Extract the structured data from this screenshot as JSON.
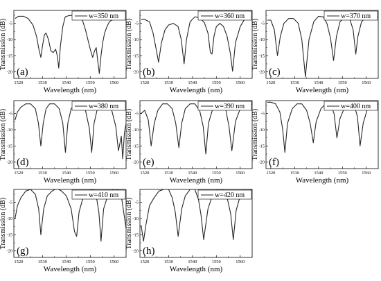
{
  "chart_data": [
    {
      "type": "line",
      "panel_label": "(a)",
      "legend_label": "w=350 nm",
      "xlabel": "Wavelength (nm)",
      "ylabel": "Transmission (dB)",
      "xlim": [
        1518,
        1565
      ],
      "ylim": [
        -22,
        -1
      ],
      "xticks": [
        1520,
        1530,
        1540,
        1550,
        1560
      ],
      "yticks": [
        0,
        -5,
        -10,
        -15,
        -20
      ],
      "x": [
        1518.5,
        1520,
        1522,
        1524,
        1526,
        1527.5,
        1528.5,
        1529.3,
        1530,
        1530.8,
        1531.5,
        1532.5,
        1533.5,
        1534.5,
        1535.5,
        1536.2,
        1536.8,
        1537.5,
        1538.5,
        1539.5,
        1541,
        1543,
        1545,
        1546.5,
        1548,
        1549,
        1550,
        1551,
        1551.8,
        1552.5,
        1553.2,
        1553.8,
        1554.5,
        1555.2,
        1556,
        1557,
        1558,
        1560,
        1562,
        1564,
        1565
      ],
      "y": [
        -3.5,
        -2.8,
        -2.8,
        -3.5,
        -5.5,
        -9,
        -13,
        -15.5,
        -12,
        -8.5,
        -8,
        -10,
        -13.5,
        -14,
        -13,
        -15,
        -18.8,
        -12,
        -6,
        -3,
        -2.6,
        -2.5,
        -2.6,
        -3.5,
        -7,
        -10,
        -13,
        -15.5,
        -13.5,
        -12.5,
        -17,
        -20.5,
        -15,
        -11,
        -8,
        -6,
        -4.5,
        -3.5,
        -3.5,
        -3.5,
        -3.8
      ]
    },
    {
      "type": "line",
      "panel_label": "(b)",
      "legend_label": "w=360 nm",
      "xlabel": "Wavelength (nm)",
      "ylabel": "Transmission (dB)",
      "xlim": [
        1518,
        1565
      ],
      "ylim": [
        -22,
        -1
      ],
      "xticks": [
        1520,
        1530,
        1540,
        1550,
        1560
      ],
      "yticks": [
        0,
        -5,
        -10,
        -15,
        -20
      ],
      "x": [
        1518.5,
        1520,
        1522,
        1523.5,
        1524.8,
        1525.8,
        1527,
        1528.5,
        1530,
        1532,
        1534,
        1535.3,
        1536.5,
        1537.5,
        1539,
        1541,
        1543,
        1545,
        1546.5,
        1547.5,
        1548.2,
        1549,
        1550,
        1551.5,
        1553,
        1554.5,
        1555.8,
        1556.8,
        1558,
        1560,
        1562,
        1564,
        1565
      ],
      "y": [
        -3.8,
        -3.8,
        -4.5,
        -8,
        -13,
        -17,
        -11,
        -7,
        -5.5,
        -5,
        -6,
        -10,
        -17.5,
        -10,
        -4.5,
        -3,
        -3.2,
        -4.8,
        -8,
        -14,
        -14.5,
        -9,
        -6,
        -5,
        -6,
        -9,
        -14,
        -19.8,
        -11,
        -6,
        -3.5,
        -3.2,
        -3.2
      ]
    },
    {
      "type": "line",
      "panel_label": "(c)",
      "legend_label": "w=370 nm",
      "xlabel": "Wavelength (nm)",
      "ylabel": "Transmission (dB)",
      "xlim": [
        1518,
        1565
      ],
      "ylim": [
        -22,
        -1
      ],
      "xticks": [
        1520,
        1530,
        1540,
        1550,
        1560
      ],
      "yticks": [
        0,
        -5,
        -10,
        -15,
        -20
      ],
      "x": [
        1518.5,
        1520,
        1521.5,
        1522.8,
        1524,
        1525.5,
        1527.5,
        1529.5,
        1531.5,
        1533,
        1534.5,
        1536,
        1538,
        1540,
        1542,
        1543.5,
        1545,
        1546.3,
        1547.5,
        1549,
        1551,
        1553,
        1554.5,
        1555.6,
        1556.5,
        1558,
        1560,
        1562,
        1564,
        1565
      ],
      "y": [
        -4,
        -4,
        -7,
        -15,
        -9,
        -5,
        -3.5,
        -3.5,
        -5,
        -10,
        -21.5,
        -10,
        -4.5,
        -2.8,
        -3,
        -5,
        -9.5,
        -16.5,
        -9,
        -4.5,
        -3,
        -3.5,
        -7,
        -14.5,
        -9,
        -4.5,
        -3,
        -2.8,
        -2.8,
        -3
      ]
    },
    {
      "type": "line",
      "panel_label": "(d)",
      "legend_label": "w=380 nm",
      "xlabel": "Wavelength (nm)",
      "ylabel": "Transmission (dB)",
      "xlim": [
        1518,
        1565
      ],
      "ylim": [
        -22,
        -1
      ],
      "xticks": [
        1520,
        1530,
        1540,
        1550,
        1560
      ],
      "yticks": [
        0,
        -5,
        -10,
        -15,
        -20
      ],
      "x": [
        1518.5,
        1519.5,
        1521,
        1523,
        1525,
        1527,
        1528.3,
        1529.3,
        1530.3,
        1531.5,
        1533,
        1535,
        1537,
        1538.5,
        1539.6,
        1540.6,
        1542,
        1544,
        1546,
        1548,
        1549.6,
        1550.6,
        1551.6,
        1553,
        1555,
        1557,
        1559,
        1560.7,
        1561.8,
        1563,
        1563.6,
        1564.3,
        1565
      ],
      "y": [
        -7,
        -4.5,
        -3,
        -2,
        -2,
        -3.5,
        -8,
        -15,
        -8,
        -3.5,
        -2,
        -2,
        -3.5,
        -8,
        -17,
        -8,
        -3.5,
        -2,
        -2,
        -4,
        -9.5,
        -17,
        -8,
        -3.5,
        -2,
        -2,
        -4,
        -9,
        -16.5,
        -12,
        -19,
        -11,
        -8
      ]
    },
    {
      "type": "line",
      "panel_label": "(e)",
      "legend_label": "w=390 nm",
      "xlabel": "Wavelength (nm)",
      "ylabel": "Transmission (dB)",
      "xlim": [
        1518,
        1565
      ],
      "ylim": [
        -22,
        -1
      ],
      "xticks": [
        1520,
        1530,
        1540,
        1550,
        1560
      ],
      "yticks": [
        0,
        -5,
        -10,
        -15,
        -20
      ],
      "x": [
        1518.5,
        1520,
        1521.5,
        1522.7,
        1524,
        1525.5,
        1527.5,
        1529.5,
        1531.5,
        1533,
        1534.3,
        1535.5,
        1537,
        1539,
        1541,
        1543,
        1544.5,
        1545.6,
        1546.7,
        1548.5,
        1550.5,
        1552.5,
        1554,
        1555.3,
        1556.5,
        1558,
        1560,
        1562,
        1564,
        1565
      ],
      "y": [
        -5,
        -4,
        -7,
        -15,
        -8,
        -4,
        -2,
        -2,
        -3.5,
        -8,
        -15.5,
        -8,
        -3.5,
        -2,
        -2,
        -4,
        -9,
        -17.5,
        -8,
        -3.5,
        -2,
        -2,
        -4,
        -9,
        -16.5,
        -7.5,
        -3.5,
        -2,
        -2,
        -2.2
      ]
    },
    {
      "type": "line",
      "panel_label": "(f)",
      "legend_label": "w=400 nm",
      "xlabel": "Wavelength (nm)",
      "ylabel": "Transmission (dB)",
      "xlim": [
        1518,
        1565
      ],
      "ylim": [
        -22,
        -1
      ],
      "xticks": [
        1520,
        1530,
        1540,
        1550,
        1560
      ],
      "yticks": [
        0,
        -5,
        -10,
        -15,
        -20
      ],
      "x": [
        1518.5,
        1520,
        1522,
        1523.8,
        1525,
        1525.9,
        1527,
        1529,
        1531,
        1533,
        1535,
        1536.5,
        1537.8,
        1539,
        1541,
        1543,
        1545,
        1546.5,
        1547.7,
        1549,
        1551,
        1553,
        1555,
        1556.3,
        1557.4,
        1558.7,
        1560.5,
        1562.5,
        1564,
        1565
      ],
      "y": [
        -1.5,
        -1.5,
        -2,
        -4.5,
        -10,
        -17,
        -8,
        -3.5,
        -2,
        -2,
        -4,
        -8,
        -14,
        -7.5,
        -3.5,
        -2,
        -2,
        -5,
        -12.5,
        -6.5,
        -3,
        -2,
        -2.5,
        -6,
        -15,
        -8,
        -3.5,
        -2,
        -2,
        -2.2
      ]
    },
    {
      "type": "line",
      "panel_label": "(g)",
      "legend_label": "w=410 nm",
      "xlabel": "Wavelength (nm)",
      "ylabel": "Transmission (dB)",
      "xlim": [
        1518,
        1565
      ],
      "ylim": [
        -22,
        -1
      ],
      "xticks": [
        1520,
        1530,
        1540,
        1550,
        1560
      ],
      "yticks": [
        0,
        -5,
        -10,
        -15,
        -20
      ],
      "x": [
        1518.5,
        1519.5,
        1521,
        1523,
        1525,
        1527,
        1528.4,
        1529.3,
        1530.5,
        1532,
        1534,
        1536,
        1538,
        1540,
        1542,
        1543.4,
        1544.3,
        1545.3,
        1547,
        1549,
        1551,
        1552.5,
        1553.6,
        1554.5,
        1555.6,
        1557.5,
        1559.5,
        1561.5,
        1563,
        1564,
        1565
      ],
      "y": [
        -10,
        -6,
        -3.5,
        -1.5,
        -1,
        -2.5,
        -7,
        -15,
        -7,
        -3,
        -1.5,
        -0.7,
        -1.5,
        -3,
        -7,
        -14,
        -15.5,
        -8,
        -3.5,
        -1.5,
        -1,
        -3,
        -8,
        -17,
        -7,
        -2.5,
        -1,
        -1,
        -3,
        -8,
        -13
      ]
    },
    {
      "type": "line",
      "panel_label": "(h)",
      "legend_label": "w=420 nm",
      "xlabel": "Wavelength (nm)",
      "ylabel": "Transmission (dB)",
      "xlim": [
        1518,
        1565
      ],
      "ylim": [
        -22,
        -1
      ],
      "xticks": [
        1520,
        1530,
        1540,
        1550,
        1560
      ],
      "yticks": [
        0,
        -5,
        -10,
        -15,
        -20
      ],
      "x": [
        1518.5,
        1519.5,
        1520.5,
        1522,
        1524,
        1526,
        1528,
        1530,
        1531.5,
        1532.8,
        1534,
        1535.5,
        1537,
        1539,
        1541,
        1542.5,
        1543.6,
        1544.7,
        1546.5,
        1548.5,
        1550.5,
        1552.5,
        1554.5,
        1556,
        1557.1,
        1558.3,
        1560,
        1562,
        1564,
        1565
      ],
      "y": [
        -12,
        -17,
        -12,
        -6,
        -3.5,
        -1.5,
        -1,
        -1,
        -3.5,
        -8,
        -15.5,
        -7,
        -3,
        -1,
        -1,
        -4,
        -9,
        -16.5,
        -7,
        -2.5,
        -1,
        -1,
        -3.5,
        -8.5,
        -16.5,
        -7.5,
        -3,
        -1,
        -1,
        -1.2
      ]
    }
  ]
}
